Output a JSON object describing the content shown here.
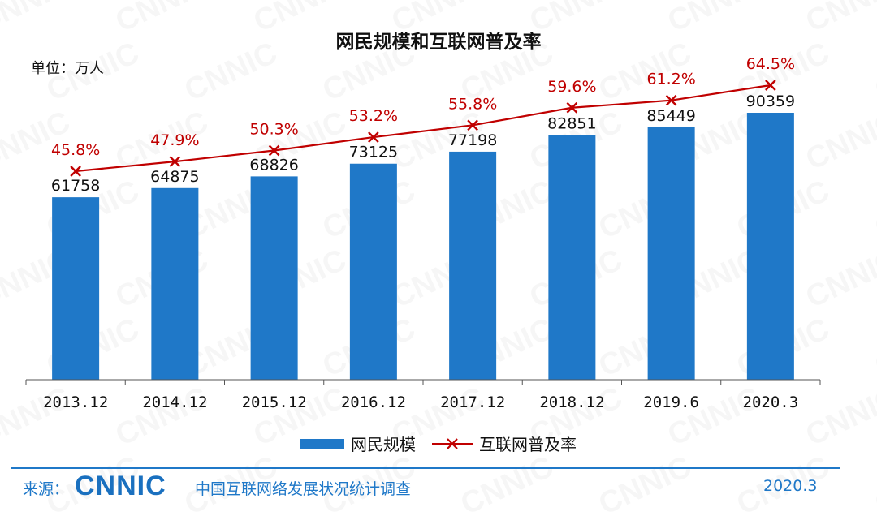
{
  "header": {
    "title": "网民规模和互联网普及率",
    "unit": "单位：万人"
  },
  "chart_data": {
    "type": "bar",
    "categories": [
      "2013.12",
      "2014.12",
      "2015.12",
      "2016.12",
      "2017.12",
      "2018.12",
      "2019.6",
      "2020.3"
    ],
    "series": [
      {
        "name": "网民规模",
        "type": "bar",
        "values": [
          61758,
          64875,
          68826,
          73125,
          77198,
          82851,
          85449,
          90359
        ],
        "color": "#1f78c8"
      },
      {
        "name": "互联网普及率",
        "type": "line",
        "values": [
          45.8,
          47.9,
          50.3,
          53.2,
          55.8,
          59.6,
          61.2,
          64.5
        ],
        "labels": [
          "45.8%",
          "47.9%",
          "50.3%",
          "53.2%",
          "55.8%",
          "59.6%",
          "61.2%",
          "64.5%"
        ],
        "color": "#c00000"
      }
    ],
    "legend_position": "bottom",
    "grid": false
  },
  "legend": {
    "bar_label": "网民规模",
    "line_label": "互联网普及率"
  },
  "footer": {
    "source_label": "来源：",
    "logo_text": "CNNIC",
    "survey_name": "中国互联网络发展状况统计调查",
    "date": "2020.3"
  },
  "colors": {
    "bar": "#1f78c8",
    "line": "#c00000",
    "accent": "#1f78c8"
  }
}
